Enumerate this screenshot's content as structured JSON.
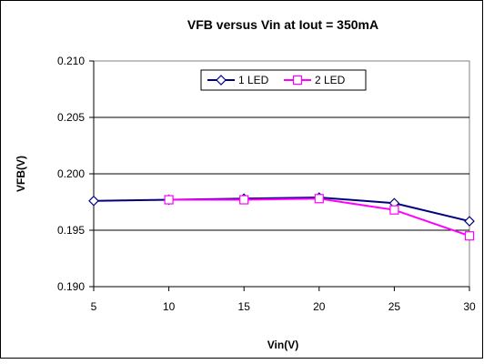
{
  "chart_data": {
    "type": "line",
    "title": "VFB versus Vin at Iout = 350mA",
    "xlabel": "Vin(V)",
    "ylabel": "VFB(V)",
    "x": [
      5,
      10,
      15,
      20,
      25,
      30
    ],
    "xlim": [
      5,
      30
    ],
    "ylim": [
      0.19,
      0.21
    ],
    "x_ticks": [
      "5",
      "10",
      "15",
      "20",
      "25",
      "30"
    ],
    "y_ticks": [
      "0.190",
      "0.195",
      "0.200",
      "0.205",
      "0.210"
    ],
    "grid": "horizontal",
    "legend_position": "top-center",
    "series": [
      {
        "name": "1 LED",
        "color": "#000080",
        "marker": "diamond",
        "x": [
          5,
          10,
          15,
          20,
          25,
          30
        ],
        "y": [
          0.1976,
          0.1977,
          0.1978,
          0.1979,
          0.1974,
          0.1958
        ]
      },
      {
        "name": "2 LED",
        "color": "#ff00ff",
        "marker": "square",
        "x": [
          10,
          15,
          20,
          25,
          30
        ],
        "y": [
          0.1977,
          0.1977,
          0.1978,
          0.1968,
          0.1945
        ]
      }
    ]
  }
}
